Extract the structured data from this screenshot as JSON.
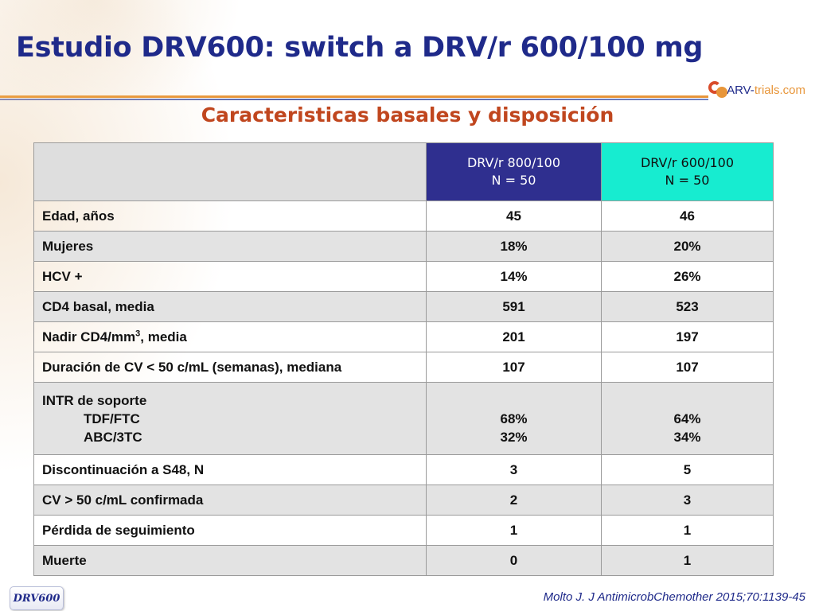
{
  "slide": {
    "title": "Estudio DRV600: switch a DRV/r 600/100 mg",
    "subtitle": "Caracteristicas basales y disposición",
    "logo": {
      "part1": "ARV-",
      "part2": "trials",
      "part3": ".com"
    },
    "badge": "DRV600",
    "citation": "Molto J. J AntimicrobChemother 2015;70:1139-45"
  },
  "table": {
    "headers": [
      {
        "line1": "DRV/r 800/100",
        "line2": "N = 50"
      },
      {
        "line1": "DRV/r 600/100",
        "line2": "N = 50"
      }
    ],
    "rows": [
      {
        "label": "Edad, años",
        "v1": "45",
        "v2": "46"
      },
      {
        "label": "Mujeres",
        "v1": "18%",
        "v2": "20%"
      },
      {
        "label": "HCV +",
        "v1": "14%",
        "v2": "26%"
      },
      {
        "label": "CD4 basal, media",
        "v1": "591",
        "v2": "523"
      },
      {
        "label_pre": "Nadir CD4/mm",
        "label_sup": "3",
        "label_post": ", media",
        "v1": "201",
        "v2": "197"
      },
      {
        "label": "Duración de CV  < 50 c/mL (semanas), mediana",
        "v1": "107",
        "v2": "107"
      },
      {
        "label": "INTR de soporte",
        "sub1_label": "TDF/FTC",
        "sub1_v1": "68%",
        "sub1_v2": "64%",
        "sub2_label": "ABC/3TC",
        "sub2_v1": "32%",
        "sub2_v2": "34%"
      },
      {
        "label": "Discontinuación a S48, N",
        "v1": "3",
        "v2": "5"
      },
      {
        "label": "CV > 50 c/mL confirmada",
        "v1": "2",
        "v2": "3"
      },
      {
        "label": "Pérdida de seguimiento",
        "v1": "1",
        "v2": "1"
      },
      {
        "label": "Muerte",
        "v1": "0",
        "v2": "1"
      }
    ]
  },
  "colors": {
    "title": "#1f2a8a",
    "subtitle": "#c0461e",
    "header_800": "#2f2f8f",
    "header_600": "#17ecd0",
    "row_shade": "#e3e3e3"
  },
  "icons": {
    "logo": "arv-trials-logo-icon"
  }
}
